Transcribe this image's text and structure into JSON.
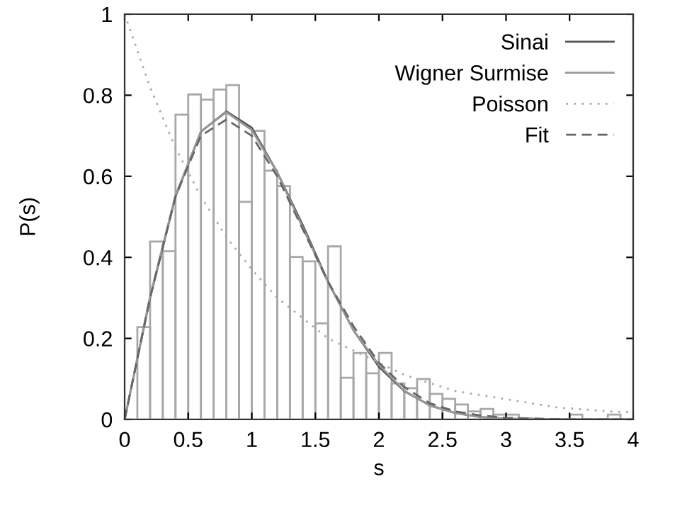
{
  "chart_data": {
    "type": "histogram",
    "xlabel": "s",
    "ylabel": "P(s)",
    "bins": [
      0,
      0.1,
      0.2,
      0.3,
      0.4,
      0.5,
      0.6,
      0.7,
      0.8,
      0.9,
      1.0,
      1.1,
      1.2,
      1.3,
      1.4,
      1.5,
      1.6,
      1.7,
      1.8,
      1.9,
      2.0,
      2.1,
      2.2,
      2.3,
      2.4,
      2.5,
      2.6,
      2.7,
      2.8,
      2.9,
      3.0,
      3.1,
      3.2,
      3.3,
      3.4,
      3.5,
      3.6,
      3.7,
      3.8,
      3.9,
      4.0
    ],
    "values": [
      0,
      0.228,
      0.439,
      0.415,
      0.752,
      0.802,
      0.789,
      0.814,
      0.825,
      0.537,
      0.712,
      0.614,
      0.576,
      0.401,
      0.39,
      0.237,
      0.427,
      0.103,
      0.164,
      0.114,
      0.164,
      0.089,
      0.077,
      0.1,
      0.063,
      0.051,
      0.037,
      0.02,
      0.026,
      0.012,
      0.012,
      0.003,
      0,
      0,
      0,
      0.012,
      0,
      0,
      0.012,
      0
    ],
    "color": "#a8a8a8",
    "series": [
      {
        "type": "line",
        "name": "Sinai",
        "color": "#555555",
        "line_style": "solid",
        "x": [
          0,
          0.2,
          0.4,
          0.6,
          0.8,
          1.0,
          1.2,
          1.4,
          1.6,
          1.8,
          2.0,
          2.2,
          2.4,
          2.6,
          2.8,
          3.0,
          3.5,
          4.0
        ],
        "values": [
          0,
          0.3,
          0.55,
          0.71,
          0.76,
          0.72,
          0.61,
          0.48,
          0.34,
          0.22,
          0.13,
          0.07,
          0.035,
          0.016,
          0.006,
          0.002,
          0,
          0
        ]
      },
      {
        "type": "line",
        "name": "Wigner Surmise",
        "color": "#999999",
        "line_style": "solid",
        "x": [
          0,
          0.2,
          0.4,
          0.6,
          0.8,
          1.0,
          1.2,
          1.4,
          1.6,
          1.8,
          2.0,
          2.2,
          2.4,
          2.6,
          2.8,
          3.0,
          3.5,
          4.0
        ],
        "values": [
          0,
          0.304,
          0.553,
          0.711,
          0.758,
          0.714,
          0.609,
          0.474,
          0.338,
          0.22,
          0.135,
          0.071,
          0.034,
          0.016,
          0.006,
          0.002,
          0,
          0
        ]
      },
      {
        "type": "line",
        "name": "Poisson",
        "color": "#aaaaaa",
        "line_style": "dotted",
        "x": [
          0,
          0.2,
          0.4,
          0.6,
          0.8,
          1.0,
          1.2,
          1.4,
          1.6,
          1.8,
          2.0,
          2.2,
          2.4,
          2.6,
          2.8,
          3.0,
          3.2,
          3.4,
          3.6,
          3.8,
          4.0
        ],
        "values": [
          1,
          0.82,
          0.67,
          0.55,
          0.45,
          0.37,
          0.3,
          0.25,
          0.2,
          0.17,
          0.14,
          0.11,
          0.09,
          0.07,
          0.06,
          0.05,
          0.04,
          0.03,
          0.025,
          0.02,
          0.018
        ]
      },
      {
        "type": "line",
        "name": "Fit",
        "color": "#666666",
        "line_style": "dashed",
        "x": [
          0,
          0.2,
          0.4,
          0.6,
          0.8,
          1.0,
          1.2,
          1.4,
          1.6,
          1.8,
          2.0,
          2.2,
          2.4,
          2.6,
          2.8,
          3.0,
          3.5,
          4.0
        ],
        "values": [
          0,
          0.3,
          0.55,
          0.7,
          0.74,
          0.7,
          0.6,
          0.47,
          0.34,
          0.23,
          0.14,
          0.08,
          0.04,
          0.02,
          0.01,
          0.004,
          0,
          0
        ]
      }
    ],
    "xlim": [
      0,
      4
    ],
    "xticks": [
      0,
      0.5,
      1,
      1.5,
      2,
      2.5,
      3,
      3.5,
      4
    ],
    "ylim": [
      0,
      1
    ],
    "yticks": [
      0,
      0.2,
      0.4,
      0.6,
      0.8,
      1
    ],
    "grid": false,
    "legend": "top right"
  }
}
